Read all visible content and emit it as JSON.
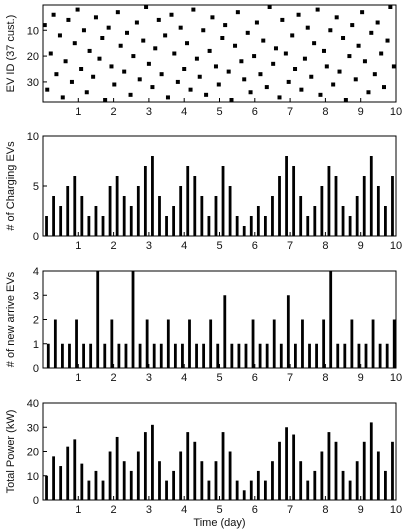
{
  "chart_data": [
    {
      "type": "heatmap",
      "ylabel": "EV ID (37 cust.)",
      "xlabel": "",
      "xlim": [
        0,
        10
      ],
      "ylim": [
        1,
        37
      ],
      "xticks": [
        "1",
        "2",
        "3",
        "4",
        "5",
        "6",
        "7",
        "8",
        "9",
        "10"
      ],
      "yticks": [
        "10",
        "20",
        "30"
      ],
      "grid": false,
      "events": [
        {
          "t": 0.05,
          "id": 8
        },
        {
          "t": 0.12,
          "id": 33
        },
        {
          "t": 0.22,
          "id": 19
        },
        {
          "t": 0.3,
          "id": 4
        },
        {
          "t": 0.38,
          "id": 27
        },
        {
          "t": 0.48,
          "id": 12
        },
        {
          "t": 0.56,
          "id": 36
        },
        {
          "t": 0.64,
          "id": 22
        },
        {
          "t": 0.72,
          "id": 6
        },
        {
          "t": 0.82,
          "id": 30
        },
        {
          "t": 0.9,
          "id": 15
        },
        {
          "t": 0.98,
          "id": 2
        },
        {
          "t": 1.08,
          "id": 25
        },
        {
          "t": 1.16,
          "id": 10
        },
        {
          "t": 1.24,
          "id": 34
        },
        {
          "t": 1.32,
          "id": 18
        },
        {
          "t": 1.42,
          "id": 28
        },
        {
          "t": 1.5,
          "id": 5
        },
        {
          "t": 1.6,
          "id": 21
        },
        {
          "t": 1.68,
          "id": 13
        },
        {
          "t": 1.76,
          "id": 37
        },
        {
          "t": 1.86,
          "id": 9
        },
        {
          "t": 1.94,
          "id": 24
        },
        {
          "t": 2.02,
          "id": 31
        },
        {
          "t": 2.12,
          "id": 3
        },
        {
          "t": 2.2,
          "id": 16
        },
        {
          "t": 2.3,
          "id": 26
        },
        {
          "t": 2.38,
          "id": 11
        },
        {
          "t": 2.48,
          "id": 35
        },
        {
          "t": 2.56,
          "id": 20
        },
        {
          "t": 2.66,
          "id": 7
        },
        {
          "t": 2.74,
          "id": 29
        },
        {
          "t": 2.84,
          "id": 14
        },
        {
          "t": 2.92,
          "id": 1
        },
        {
          "t": 3.0,
          "id": 23
        },
        {
          "t": 3.1,
          "id": 32
        },
        {
          "t": 3.18,
          "id": 17
        },
        {
          "t": 3.28,
          "id": 6
        },
        {
          "t": 3.36,
          "id": 27
        },
        {
          "t": 3.46,
          "id": 12
        },
        {
          "t": 3.54,
          "id": 36
        },
        {
          "t": 3.64,
          "id": 4
        },
        {
          "t": 3.72,
          "id": 19
        },
        {
          "t": 3.82,
          "id": 30
        },
        {
          "t": 3.9,
          "id": 9
        },
        {
          "t": 4.0,
          "id": 25
        },
        {
          "t": 4.08,
          "id": 15
        },
        {
          "t": 4.18,
          "id": 33
        },
        {
          "t": 4.26,
          "id": 2
        },
        {
          "t": 4.36,
          "id": 21
        },
        {
          "t": 4.44,
          "id": 28
        },
        {
          "t": 4.54,
          "id": 10
        },
        {
          "t": 4.62,
          "id": 35
        },
        {
          "t": 4.72,
          "id": 18
        },
        {
          "t": 4.8,
          "id": 5
        },
        {
          "t": 4.9,
          "id": 24
        },
        {
          "t": 4.98,
          "id": 31
        },
        {
          "t": 5.08,
          "id": 13
        },
        {
          "t": 5.16,
          "id": 8
        },
        {
          "t": 5.26,
          "id": 26
        },
        {
          "t": 5.34,
          "id": 37
        },
        {
          "t": 5.44,
          "id": 16
        },
        {
          "t": 5.52,
          "id": 3
        },
        {
          "t": 5.62,
          "id": 22
        },
        {
          "t": 5.7,
          "id": 29
        },
        {
          "t": 5.8,
          "id": 11
        },
        {
          "t": 5.88,
          "id": 34
        },
        {
          "t": 5.98,
          "id": 20
        },
        {
          "t": 6.06,
          "id": 7
        },
        {
          "t": 6.16,
          "id": 27
        },
        {
          "t": 6.24,
          "id": 14
        },
        {
          "t": 6.34,
          "id": 32
        },
        {
          "t": 6.42,
          "id": 1
        },
        {
          "t": 6.52,
          "id": 23
        },
        {
          "t": 6.6,
          "id": 17
        },
        {
          "t": 6.7,
          "id": 36
        },
        {
          "t": 6.78,
          "id": 6
        },
        {
          "t": 6.88,
          "id": 19
        },
        {
          "t": 6.96,
          "id": 30
        },
        {
          "t": 7.06,
          "id": 12
        },
        {
          "t": 7.14,
          "id": 25
        },
        {
          "t": 7.24,
          "id": 4
        },
        {
          "t": 7.32,
          "id": 33
        },
        {
          "t": 7.42,
          "id": 21
        },
        {
          "t": 7.5,
          "id": 9
        },
        {
          "t": 7.6,
          "id": 28
        },
        {
          "t": 7.68,
          "id": 15
        },
        {
          "t": 7.78,
          "id": 2
        },
        {
          "t": 7.86,
          "id": 35
        },
        {
          "t": 7.96,
          "id": 18
        },
        {
          "t": 8.04,
          "id": 24
        },
        {
          "t": 8.14,
          "id": 10
        },
        {
          "t": 8.22,
          "id": 31
        },
        {
          "t": 8.32,
          "id": 5
        },
        {
          "t": 8.4,
          "id": 26
        },
        {
          "t": 8.5,
          "id": 13
        },
        {
          "t": 8.58,
          "id": 37
        },
        {
          "t": 8.68,
          "id": 20
        },
        {
          "t": 8.76,
          "id": 8
        },
        {
          "t": 8.86,
          "id": 29
        },
        {
          "t": 8.94,
          "id": 16
        },
        {
          "t": 9.04,
          "id": 3
        },
        {
          "t": 9.12,
          "id": 22
        },
        {
          "t": 9.22,
          "id": 34
        },
        {
          "t": 9.3,
          "id": 11
        },
        {
          "t": 9.4,
          "id": 27
        },
        {
          "t": 9.48,
          "id": 7
        },
        {
          "t": 9.58,
          "id": 19
        },
        {
          "t": 9.66,
          "id": 32
        },
        {
          "t": 9.76,
          "id": 14
        },
        {
          "t": 9.84,
          "id": 1
        },
        {
          "t": 9.94,
          "id": 24
        }
      ]
    },
    {
      "type": "bar",
      "ylabel": "# of Charging EVs",
      "xlabel": "",
      "xlim": [
        0,
        10
      ],
      "ylim": [
        0,
        10
      ],
      "xticks": [
        "1",
        "2",
        "3",
        "4",
        "5",
        "6",
        "7",
        "8",
        "9",
        "10"
      ],
      "yticks": [
        "0",
        "5",
        "10"
      ],
      "grid": false,
      "x": [
        0.1,
        0.3,
        0.5,
        0.7,
        0.9,
        1.1,
        1.3,
        1.5,
        1.7,
        1.9,
        2.1,
        2.3,
        2.5,
        2.7,
        2.9,
        3.1,
        3.3,
        3.5,
        3.7,
        3.9,
        4.1,
        4.3,
        4.5,
        4.7,
        4.9,
        5.1,
        5.3,
        5.5,
        5.7,
        5.9,
        6.1,
        6.3,
        6.5,
        6.7,
        6.9,
        7.1,
        7.3,
        7.5,
        7.7,
        7.9,
        8.1,
        8.3,
        8.5,
        8.7,
        8.9,
        9.1,
        9.3,
        9.5,
        9.7,
        9.9
      ],
      "values": [
        2,
        4,
        3,
        5,
        6,
        4,
        2,
        3,
        2,
        5,
        6,
        4,
        3,
        5,
        7,
        8,
        4,
        2,
        3,
        5,
        7,
        6,
        4,
        2,
        4,
        7,
        5,
        2,
        1,
        2,
        3,
        2,
        4,
        6,
        8,
        7,
        4,
        2,
        3,
        5,
        7,
        6,
        3,
        2,
        4,
        6,
        8,
        5,
        3,
        6
      ]
    },
    {
      "type": "bar",
      "ylabel": "# of new arrive EVs",
      "xlabel": "",
      "xlim": [
        0,
        10
      ],
      "ylim": [
        0,
        4
      ],
      "xticks": [
        "1",
        "2",
        "3",
        "4",
        "5",
        "6",
        "7",
        "8",
        "9",
        "10"
      ],
      "yticks": [
        "0",
        "1",
        "2",
        "3",
        "4"
      ],
      "grid": false,
      "x": [
        0.15,
        0.35,
        0.55,
        0.75,
        0.95,
        1.15,
        1.35,
        1.55,
        1.75,
        1.95,
        2.15,
        2.35,
        2.55,
        2.75,
        2.95,
        3.15,
        3.35,
        3.55,
        3.75,
        3.95,
        4.15,
        4.35,
        4.55,
        4.75,
        4.95,
        5.15,
        5.35,
        5.55,
        5.75,
        5.95,
        6.15,
        6.35,
        6.55,
        6.75,
        6.95,
        7.15,
        7.35,
        7.55,
        7.75,
        7.95,
        8.15,
        8.35,
        8.55,
        8.75,
        8.95,
        9.15,
        9.35,
        9.55,
        9.75,
        9.95
      ],
      "values": [
        1,
        2,
        1,
        1,
        2,
        1,
        1,
        4,
        1,
        2,
        1,
        1,
        4,
        1,
        2,
        1,
        1,
        2,
        1,
        1,
        2,
        1,
        1,
        2,
        1,
        3,
        1,
        1,
        1,
        2,
        1,
        1,
        2,
        1,
        3,
        1,
        2,
        1,
        1,
        2,
        4,
        1,
        1,
        2,
        1,
        1,
        2,
        1,
        1,
        2
      ]
    },
    {
      "type": "bar",
      "ylabel": "Total Power (kW)",
      "xlabel": "Time (day)",
      "xlim": [
        0,
        10
      ],
      "ylim": [
        0,
        40
      ],
      "xticks": [
        "1",
        "2",
        "3",
        "4",
        "5",
        "6",
        "7",
        "8",
        "9",
        "10"
      ],
      "yticks": [
        "0",
        "10",
        "20",
        "30",
        "40"
      ],
      "grid": false,
      "x": [
        0.1,
        0.3,
        0.5,
        0.7,
        0.9,
        1.1,
        1.3,
        1.5,
        1.7,
        1.9,
        2.1,
        2.3,
        2.5,
        2.7,
        2.9,
        3.1,
        3.3,
        3.5,
        3.7,
        3.9,
        4.1,
        4.3,
        4.5,
        4.7,
        4.9,
        5.1,
        5.3,
        5.5,
        5.7,
        5.9,
        6.1,
        6.3,
        6.5,
        6.7,
        6.9,
        7.1,
        7.3,
        7.5,
        7.7,
        7.9,
        8.1,
        8.3,
        8.5,
        8.7,
        8.9,
        9.1,
        9.3,
        9.5,
        9.7,
        9.9
      ],
      "values": [
        10,
        18,
        14,
        22,
        25,
        15,
        8,
        12,
        8,
        20,
        26,
        16,
        12,
        20,
        28,
        31,
        16,
        8,
        12,
        20,
        28,
        24,
        16,
        8,
        16,
        28,
        20,
        8,
        4,
        8,
        12,
        8,
        16,
        24,
        30,
        27,
        16,
        8,
        12,
        20,
        28,
        24,
        12,
        8,
        16,
        24,
        32,
        20,
        12,
        24
      ]
    }
  ]
}
